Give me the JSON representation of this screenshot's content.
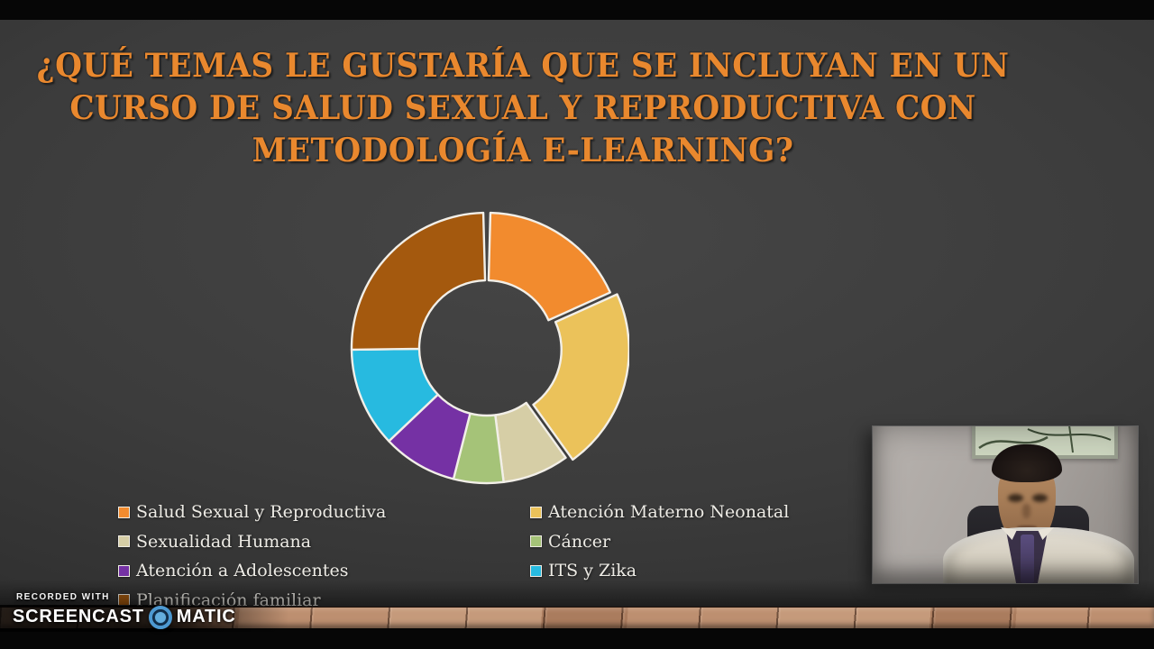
{
  "slide": {
    "title_lines": [
      "¿QUÉ TEMAS LE GUSTARÍA QUE SE INCLUYAN EN UN",
      "CURSO DE SALUD SEXUAL Y REPRODUCTIVA CON",
      "METODOLOGÍA E-LEARNING?"
    ],
    "title_color": "#E9882E",
    "background_color": "#3B3B3B"
  },
  "chart_data": {
    "type": "pie",
    "style": "donut",
    "title": "¿Qué temas le gustaría que se incluyan en un curso de salud sexual y reproductiva con metodología e-learning?",
    "categories": [
      "Salud Sexual y Reproductiva",
      "Atención Materno Neonatal",
      "Sexualidad Humana",
      "Cáncer",
      "Atención a Adolescentes",
      "ITS y Zika",
      "Planificación familiar"
    ],
    "values": [
      18,
      22,
      8,
      6,
      9,
      12,
      25
    ],
    "colors": [
      "#F28B2E",
      "#EBC25A",
      "#D6CEA6",
      "#A5C378",
      "#7531A4",
      "#27BAE0",
      "#A4590E"
    ],
    "start_angle_deg": 0,
    "clockwise": true,
    "donut_hole_ratio": 0.5,
    "exploded_slice": "Atención Materno Neonatal",
    "data_labels": "none",
    "slice_border_color": "#F2EFE8",
    "legend_position": "bottom-two-columns"
  },
  "legend": {
    "left_column": [
      {
        "label": "Salud Sexual y Reproductiva",
        "color": "#F28B2E"
      },
      {
        "label": "Sexualidad Humana",
        "color": "#D6CEA6"
      },
      {
        "label": "Atención a Adolescentes",
        "color": "#7531A4"
      },
      {
        "label": "Planificación familiar",
        "color": "#A4590E"
      }
    ],
    "right_column": [
      {
        "label": "Atención Materno Neonatal",
        "color": "#EBC25A"
      },
      {
        "label": "Cáncer",
        "color": "#A5C378"
      },
      {
        "label": "ITS y Zika",
        "color": "#27BAE0"
      }
    ]
  },
  "watermark": {
    "recorded_with": "RECORDED WITH",
    "brand_left": "SCREENCAST",
    "brand_right": "MATIC",
    "ring_color": "#4E9AD2"
  }
}
